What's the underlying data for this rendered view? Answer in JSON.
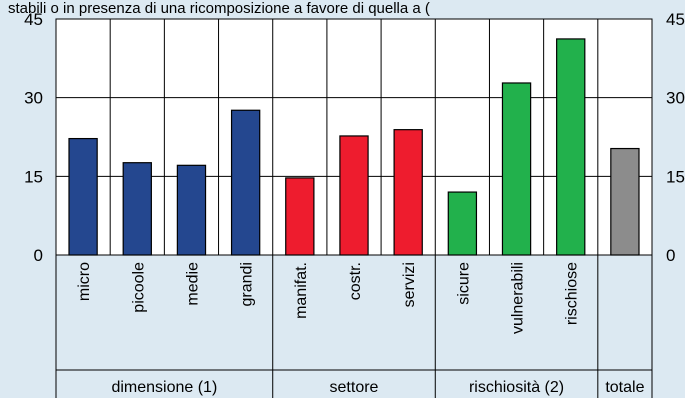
{
  "top_text": "stabili o in presenza di una ricomposizione a favore di quella a (",
  "chart_data": {
    "type": "bar",
    "ylim": [
      0,
      45
    ],
    "yticks": [
      0,
      15,
      30,
      45
    ],
    "yticks_right": [
      "0",
      "15",
      "30",
      "45"
    ],
    "grid": true,
    "categories": [
      "micro",
      "picoole",
      "medie",
      "grandi",
      "manifat.",
      "costr.",
      "servizi",
      "sicure",
      "vulnerabili",
      "rischiose",
      ""
    ],
    "values": [
      22.2,
      17.6,
      17.1,
      27.6,
      14.7,
      22.7,
      23.9,
      12.0,
      32.8,
      41.2,
      20.3
    ],
    "bar_colors": [
      "#24478f",
      "#24478f",
      "#24478f",
      "#24478f",
      "#ee1c2e",
      "#ee1c2e",
      "#ee1c2e",
      "#22b14c",
      "#22b14c",
      "#22b14c",
      "#8c8c8c"
    ],
    "groups": [
      {
        "label": "dimensione (1)",
        "span": 4
      },
      {
        "label": "settore",
        "span": 3
      },
      {
        "label": "rischiosità (2)",
        "span": 3
      },
      {
        "label": "totale",
        "span": 1
      }
    ]
  }
}
